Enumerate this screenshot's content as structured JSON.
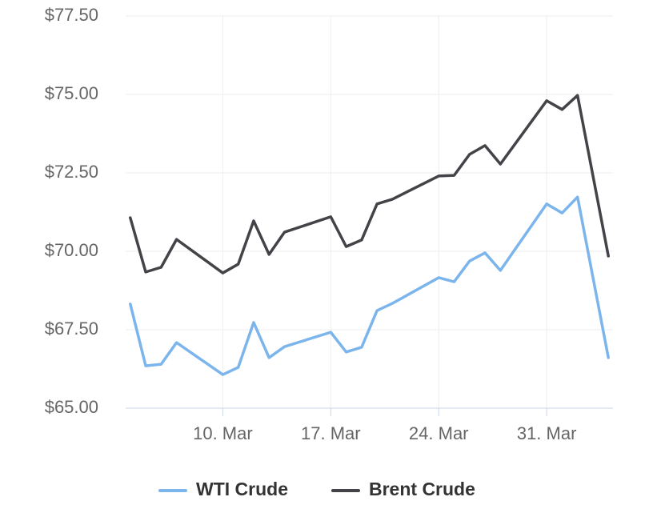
{
  "chart_data": {
    "type": "line",
    "x": [
      "4. Mar",
      "5. Mar",
      "6. Mar",
      "7. Mar",
      "10. Mar",
      "11. Mar",
      "12. Mar",
      "13. Mar",
      "14. Mar",
      "17. Mar",
      "18. Mar",
      "19. Mar",
      "20. Mar",
      "21. Mar",
      "24. Mar",
      "25. Mar",
      "26. Mar",
      "27. Mar",
      "28. Mar",
      "31. Mar",
      "1. Apr",
      "2. Apr",
      "4. Apr"
    ],
    "series": [
      {
        "name": "WTI Crude",
        "color": "#7cb5ec",
        "values": [
          68.32,
          66.35,
          66.4,
          67.09,
          66.07,
          66.3,
          67.73,
          66.61,
          66.96,
          67.42,
          66.79,
          66.94,
          68.11,
          68.34,
          69.16,
          69.03,
          69.69,
          69.95,
          69.39,
          71.51,
          71.22,
          71.73,
          66.61
        ]
      },
      {
        "name": "Brent Crude",
        "color": "#434348",
        "values": [
          71.07,
          69.34,
          69.49,
          70.38,
          69.31,
          69.59,
          70.97,
          69.9,
          70.61,
          71.1,
          70.15,
          70.36,
          71.51,
          71.66,
          72.4,
          72.42,
          73.09,
          73.37,
          72.78,
          74.8,
          74.52,
          74.97,
          69.85
        ]
      }
    ],
    "xticks": [
      "10. Mar",
      "17. Mar",
      "24. Mar",
      "31. Mar"
    ],
    "ylim": [
      65,
      77.5
    ],
    "yticks": [
      {
        "value": 65,
        "label": "$65.00"
      },
      {
        "value": 67.5,
        "label": "$67.50"
      },
      {
        "value": 70,
        "label": "$70.00"
      },
      {
        "value": 72.5,
        "label": "$72.50"
      },
      {
        "value": 75,
        "label": "$75.00"
      },
      {
        "value": 77.5,
        "label": "$77.50"
      }
    ],
    "grid": true,
    "legend": "bottom"
  }
}
